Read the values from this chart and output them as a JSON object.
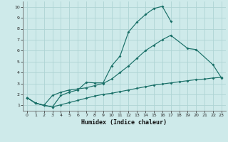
{
  "xlabel": "Humidex (Indice chaleur)",
  "bg_color": "#ceeaea",
  "grid_color": "#aed4d4",
  "line_color": "#1a7068",
  "xlim": [
    -0.5,
    23.5
  ],
  "ylim": [
    0.5,
    10.5
  ],
  "xticks": [
    0,
    1,
    2,
    3,
    4,
    5,
    6,
    7,
    8,
    9,
    10,
    11,
    12,
    13,
    14,
    15,
    16,
    17,
    18,
    19,
    20,
    21,
    22,
    23
  ],
  "yticks": [
    1,
    2,
    3,
    4,
    5,
    6,
    7,
    8,
    9,
    10
  ],
  "line1_x": [
    0,
    1,
    2,
    3,
    4,
    5,
    6,
    7,
    8,
    9,
    10,
    11,
    12,
    13,
    14,
    15,
    16,
    17
  ],
  "line1_y": [
    1.7,
    1.2,
    1.0,
    0.85,
    1.9,
    2.2,
    2.4,
    3.1,
    3.05,
    3.05,
    4.6,
    5.5,
    7.7,
    8.6,
    9.3,
    9.85,
    10.05,
    8.7
  ],
  "line2_x": [
    0,
    1,
    2,
    3,
    4,
    5,
    6,
    7,
    8,
    9,
    10,
    11,
    12,
    13,
    14,
    15,
    16,
    17,
    19,
    20,
    22,
    23
  ],
  "line2_y": [
    1.7,
    1.2,
    1.0,
    1.9,
    2.2,
    2.4,
    2.5,
    2.6,
    2.8,
    3.0,
    3.4,
    4.0,
    4.6,
    5.3,
    6.0,
    6.5,
    7.0,
    7.4,
    6.2,
    6.1,
    4.7,
    3.5
  ],
  "line3_x": [
    0,
    1,
    2,
    3,
    4,
    5,
    6,
    7,
    8,
    9,
    10,
    11,
    12,
    13,
    14,
    15,
    16,
    17,
    18,
    19,
    20,
    21,
    22,
    23
  ],
  "line3_y": [
    1.7,
    1.2,
    1.0,
    0.85,
    1.05,
    1.25,
    1.45,
    1.65,
    1.85,
    2.0,
    2.1,
    2.25,
    2.4,
    2.55,
    2.7,
    2.85,
    2.95,
    3.05,
    3.15,
    3.25,
    3.35,
    3.4,
    3.5,
    3.55
  ]
}
